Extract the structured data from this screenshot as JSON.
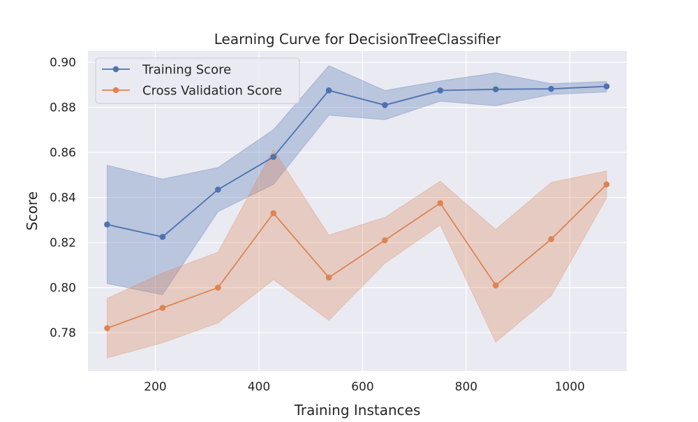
{
  "chart_data": {
    "type": "line",
    "title": "Learning Curve for DecisionTreeClassifier",
    "xlabel": "Training Instances",
    "ylabel": "Score",
    "xlim": [
      70,
      1110
    ],
    "ylim": [
      0.763,
      0.905
    ],
    "xticks": [
      200,
      400,
      600,
      800,
      1000
    ],
    "xtick_labels": [
      "200",
      "400",
      "600",
      "800",
      "1000"
    ],
    "yticks": [
      0.78,
      0.8,
      0.82,
      0.84,
      0.86,
      0.88,
      0.9
    ],
    "ytick_labels": [
      "0.78",
      "0.80",
      "0.82",
      "0.84",
      "0.86",
      "0.88",
      "0.90"
    ],
    "grid": true,
    "legend_position": "top-left",
    "x": [
      107,
      214,
      321,
      428,
      535,
      643,
      750,
      857,
      964,
      1071
    ],
    "series": [
      {
        "name": "Training Score",
        "color": "#4c72b0",
        "values": [
          0.828,
          0.8225,
          0.8435,
          0.858,
          0.8875,
          0.881,
          0.8875,
          0.888,
          0.8882,
          0.8893
        ],
        "upper": [
          0.8543,
          0.8482,
          0.8533,
          0.8701,
          0.8985,
          0.8875,
          0.8917,
          0.8953,
          0.8905,
          0.8915
        ],
        "lower": [
          0.8018,
          0.7968,
          0.8337,
          0.8458,
          0.8765,
          0.8745,
          0.8827,
          0.8807,
          0.8857,
          0.8868
        ]
      },
      {
        "name": "Cross Validation Score",
        "color": "#dd8452",
        "values": [
          0.782,
          0.791,
          0.8,
          0.833,
          0.8045,
          0.821,
          0.8375,
          0.801,
          0.8215,
          0.8458
        ],
        "upper": [
          0.7952,
          0.8065,
          0.8157,
          0.8612,
          0.8233,
          0.8312,
          0.8472,
          0.8258,
          0.8467,
          0.8518
        ],
        "lower": [
          0.7688,
          0.7755,
          0.7843,
          0.8035,
          0.7855,
          0.8108,
          0.8278,
          0.7758,
          0.7963,
          0.8398
        ]
      }
    ]
  }
}
